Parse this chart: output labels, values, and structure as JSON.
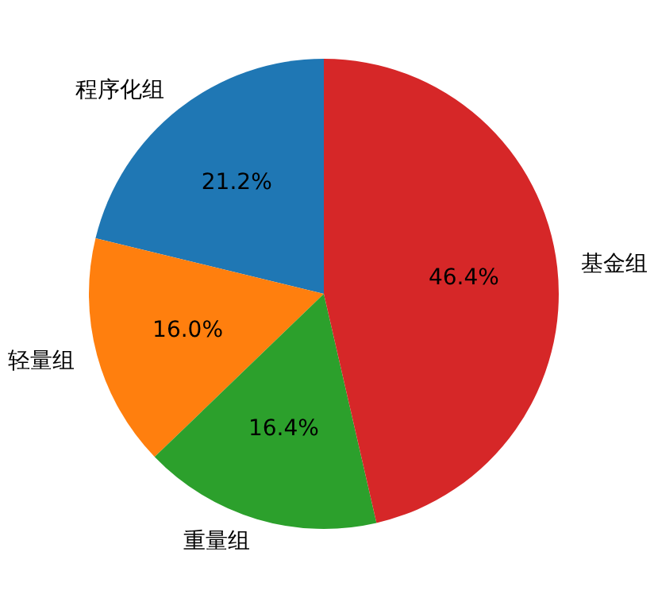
{
  "chart_data": {
    "type": "pie",
    "categories": [
      "程序化组",
      "轻量组",
      "重量组",
      "基金组"
    ],
    "values": [
      21.2,
      16.0,
      16.4,
      46.4
    ],
    "value_labels": [
      "21.2%",
      "16.0%",
      "16.4%",
      "46.4%"
    ],
    "colors": [
      "#1f77b4",
      "#ff7f0e",
      "#2ca02c",
      "#d62728"
    ]
  }
}
